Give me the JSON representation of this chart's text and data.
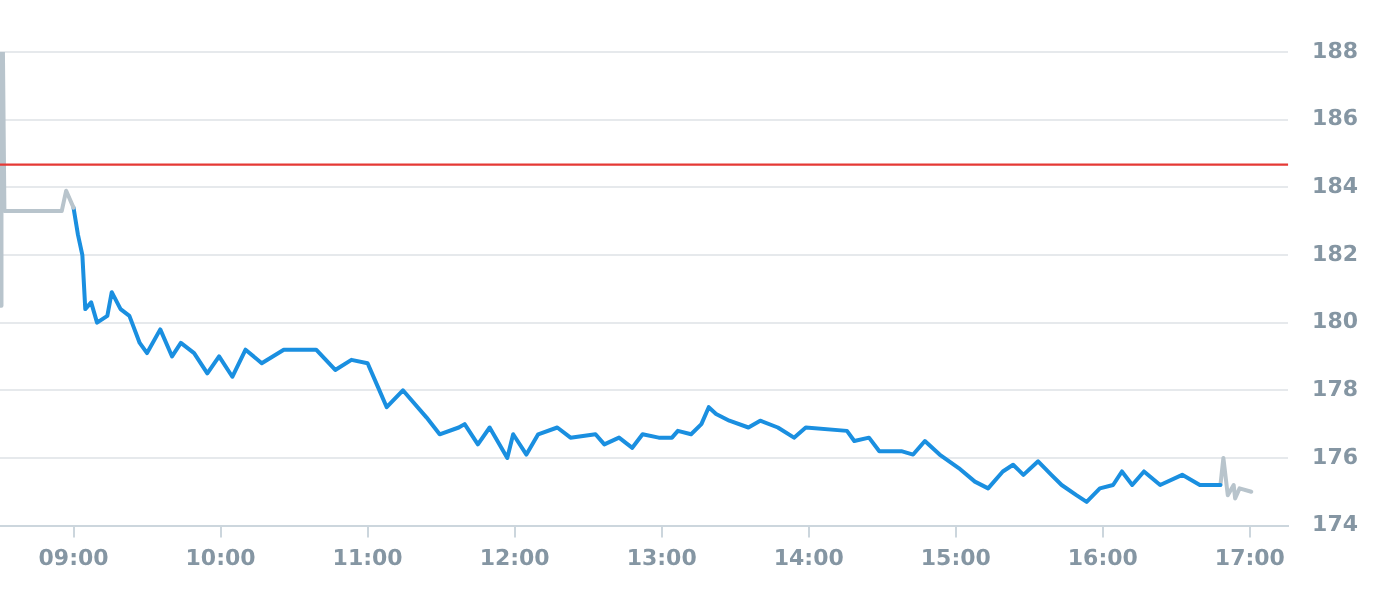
{
  "chart_data": {
    "type": "line",
    "series": [
      {
        "color": "#b8c4cc",
        "x": [
          8.5,
          8.51,
          8.52,
          8.53,
          8.92,
          8.95,
          9.0
        ],
        "values": [
          180.5,
          188,
          188,
          183.3,
          183.3,
          183.9,
          183.4
        ]
      },
      {
        "color": "#1a8fe0",
        "x": [
          9.0,
          9.03,
          9.06,
          9.08,
          9.12,
          9.16,
          9.23,
          9.26,
          9.32,
          9.38,
          9.45,
          9.5,
          9.59,
          9.67,
          9.73,
          9.82,
          9.91,
          9.99,
          10.08,
          10.17,
          10.28,
          10.43,
          10.65,
          10.78,
          10.89,
          11.0,
          11.07,
          11.13,
          11.24,
          11.4,
          11.49,
          11.62,
          11.66,
          11.75,
          11.83,
          11.95,
          11.99,
          12.08,
          12.16,
          12.29,
          12.38,
          12.55,
          12.61,
          12.71,
          12.8,
          12.87,
          12.98,
          13.07,
          13.11,
          13.2,
          13.27,
          13.32,
          13.37,
          13.46,
          13.59,
          13.67,
          13.79,
          13.9,
          13.98,
          14.26,
          14.31,
          14.41,
          14.48,
          14.5,
          14.63,
          14.71,
          14.79,
          14.89,
          15.02,
          15.13,
          15.22,
          15.32,
          15.39,
          15.46,
          15.56,
          15.65,
          15.72,
          15.82,
          15.89,
          15.98,
          16.07,
          16.13,
          16.2,
          16.28,
          16.39,
          16.54,
          16.66,
          16.76,
          16.8
        ],
        "values": [
          183.4,
          182.6,
          182,
          180.4,
          180.6,
          180,
          180.2,
          180.9,
          180.4,
          180.2,
          179.4,
          179.1,
          179.8,
          179,
          179.4,
          179.1,
          178.5,
          179,
          178.4,
          179.2,
          178.8,
          179.2,
          179.2,
          178.6,
          178.9,
          178.8,
          178.1,
          177.5,
          178,
          177.2,
          176.7,
          176.9,
          177,
          176.4,
          176.9,
          176,
          176.7,
          176.1,
          176.7,
          176.9,
          176.6,
          176.7,
          176.4,
          176.6,
          176.3,
          176.7,
          176.6,
          176.6,
          176.8,
          176.7,
          177,
          177.5,
          177.3,
          177.1,
          176.9,
          177.1,
          176.9,
          176.6,
          176.9,
          176.8,
          176.5,
          176.6,
          176.2,
          176.2,
          176.2,
          176.1,
          176.5,
          176.1,
          175.7,
          175.3,
          175.1,
          175.6,
          175.8,
          175.5,
          175.9,
          175.5,
          175.2,
          174.9,
          174.7,
          175.1,
          175.2,
          175.6,
          175.2,
          175.6,
          175.2,
          175.5,
          175.2,
          175.2,
          175.2
        ]
      },
      {
        "color": "#b8c4cc",
        "x": [
          16.8,
          16.82,
          16.85,
          16.89,
          16.9,
          16.93,
          17.01
        ],
        "values": [
          175.2,
          176,
          174.9,
          175.2,
          174.8,
          175.1,
          175
        ]
      }
    ],
    "xlim": [
      8.5,
      17.26
    ],
    "xticks": [
      {
        "value": 9,
        "label": "09:00"
      },
      {
        "value": 10,
        "label": "10:00"
      },
      {
        "value": 11,
        "label": "11:00"
      },
      {
        "value": 12,
        "label": "12:00"
      },
      {
        "value": 13,
        "label": "13:00"
      },
      {
        "value": 14,
        "label": "14:00"
      },
      {
        "value": 15,
        "label": "15:00"
      },
      {
        "value": 16,
        "label": "16:00"
      },
      {
        "value": 17,
        "label": "17:00"
      }
    ],
    "ylim": [
      174,
      188
    ],
    "yticks": [
      174,
      176,
      178,
      180,
      182,
      184,
      186,
      188
    ],
    "ref_lines": [
      {
        "axis": "y",
        "value": 184.67,
        "color": "#e53935"
      }
    ],
    "grid": "y"
  }
}
